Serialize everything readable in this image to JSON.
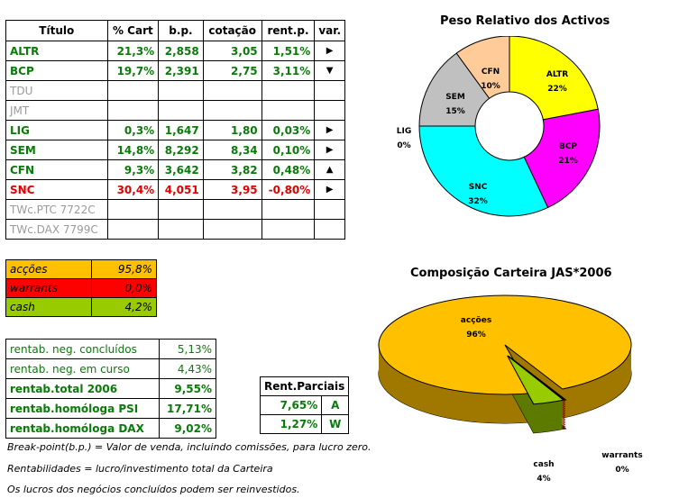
{
  "main_table": {
    "headers": [
      "Título",
      "% Cart",
      "b.p.",
      "cotação",
      "rent.p.",
      "var."
    ],
    "rows": [
      {
        "name": "ALTR",
        "pct": "21,3%",
        "bp": "2,858",
        "cot": "3,05",
        "rent": "1,51%",
        "var": "▶",
        "color": "green"
      },
      {
        "name": "BCP",
        "pct": "19,7%",
        "bp": "2,391",
        "cot": "2,75",
        "rent": "3,11%",
        "var": "▼",
        "color": "green"
      },
      {
        "name": "TDU",
        "pct": "",
        "bp": "",
        "cot": "",
        "rent": "",
        "var": "",
        "color": "grey"
      },
      {
        "name": "JMT",
        "pct": "",
        "bp": "",
        "cot": "",
        "rent": "",
        "var": "",
        "color": "grey"
      },
      {
        "name": "LIG",
        "pct": "0,3%",
        "bp": "1,647",
        "cot": "1,80",
        "rent": "0,03%",
        "var": "▶",
        "color": "green"
      },
      {
        "name": "SEM",
        "pct": "14,8%",
        "bp": "8,292",
        "cot": "8,34",
        "rent": "0,10%",
        "var": "▶",
        "color": "green"
      },
      {
        "name": "CFN",
        "pct": "9,3%",
        "bp": "3,642",
        "cot": "3,82",
        "rent": "0,48%",
        "var": "▲",
        "color": "green"
      },
      {
        "name": "SNC",
        "pct": "30,4%",
        "bp": "4,051",
        "cot": "3,95",
        "rent": "-0,80%",
        "var": "▶",
        "color": "red"
      },
      {
        "name": "TWc.PTC 7722C",
        "pct": "",
        "bp": "",
        "cot": "",
        "rent": "",
        "var": "",
        "color": "grey"
      },
      {
        "name": "TWc.DAX 7799C",
        "pct": "",
        "bp": "",
        "cot": "",
        "rent": "",
        "var": "",
        "color": "grey"
      }
    ]
  },
  "allocation": [
    {
      "label": "acções",
      "value": "95,8%",
      "bg": "#ffc000"
    },
    {
      "label": "warrants",
      "value": "0,0%",
      "bg": "#ff0000"
    },
    {
      "label": "cash",
      "value": "4,2%",
      "bg": "#99cc00"
    }
  ],
  "returns": [
    {
      "label": "rentab. neg. concluídos",
      "value": "5,13%",
      "bold": false
    },
    {
      "label": "rentab. neg. em curso",
      "value": "4,43%",
      "bold": false
    },
    {
      "label": "rentab.total 2006",
      "value": "9,55%",
      "bold": true
    },
    {
      "label": "rentab.homóloga PSI",
      "value": "17,71%",
      "bold": true
    },
    {
      "label": "rentab.homóloga DAX",
      "value": "9,02%",
      "bold": true
    }
  ],
  "partial": {
    "header": "Rent.Parciais",
    "rows": [
      {
        "value": "7,65%",
        "tag": "A"
      },
      {
        "value": "1,27%",
        "tag": "W"
      }
    ]
  },
  "notes": [
    "Break-point(b.p.) = Valor de venda, incluindo comissões, para lucro zero.",
    "Rentabilidades = lucro/investimento total da Carteira",
    "Os lucros dos negócios concluídos podem ser reinvestidos."
  ],
  "colors": {
    "green": "#0a7a0a",
    "red": "#e00000",
    "grey": "#9a9a9a"
  },
  "chart_data": [
    {
      "type": "pie",
      "title": "Peso Relativo dos Activos",
      "categories": [
        "ALTR",
        "BCP",
        "SNC",
        "LIG",
        "SEM",
        "CFN"
      ],
      "values": [
        22,
        21,
        32,
        0,
        15,
        10
      ],
      "labels": [
        "22%",
        "21%",
        "32%",
        "0%",
        "15%",
        "10%"
      ],
      "colors": [
        "#ffff00",
        "#ff00ff",
        "#00ffff",
        "#800080",
        "#c0c0c0",
        "#ffcc99"
      ],
      "donut": true,
      "legend": "none"
    },
    {
      "type": "pie",
      "title": "Composição Carteira JAS*2006",
      "categories": [
        "acções",
        "warrants",
        "cash"
      ],
      "values": [
        96,
        0,
        4
      ],
      "labels": [
        "96%",
        "0%",
        "4%"
      ],
      "colors": [
        "#ffc000",
        "#ff0000",
        "#99cc00"
      ],
      "style": "3d-exploded",
      "legend": "none"
    }
  ]
}
